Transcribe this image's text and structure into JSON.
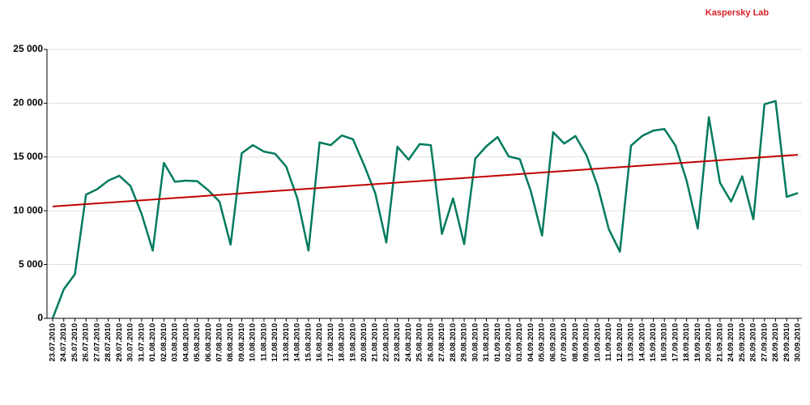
{
  "chart_data": {
    "type": "line",
    "title": "Kaspersky Lab",
    "categories": [
      "23.07.2010",
      "24.07.2010",
      "25.07.2010",
      "26.07.2010",
      "27.07.2010",
      "28.07.2010",
      "29.07.2010",
      "30.07.2010",
      "31.07.2010",
      "01.08.2010",
      "02.08.2010",
      "03.08.2010",
      "04.08.2010",
      "05.08.2010",
      "06.08.2010",
      "07.08.2010",
      "08.08.2010",
      "09.08.2010",
      "10.08.2010",
      "11.08.2010",
      "12.08.2010",
      "13.08.2010",
      "14.08.2010",
      "15.08.2010",
      "16.08.2010",
      "17.08.2010",
      "18.08.2010",
      "19.08.2010",
      "20.08.2010",
      "21.08.2010",
      "22.08.2010",
      "23.08.2010",
      "24.08.2010",
      "25.08.2010",
      "26.08.2010",
      "27.08.2010",
      "28.08.2010",
      "29.08.2010",
      "30.08.2010",
      "31.08.2010",
      "01.09.2010",
      "02.09.2010",
      "03.09.2010",
      "04.09.2010",
      "05.09.2010",
      "06.09.2010",
      "07.09.2010",
      "08.09.2010",
      "09.09.2010",
      "10.09.2010",
      "11.09.2010",
      "12.09.2010",
      "13.09.2010",
      "14.09.2010",
      "15.09.2010",
      "16.09.2010",
      "17.09.2010",
      "18.09.2010",
      "19.09.2010",
      "20.09.2010",
      "21.09.2010",
      "24.09.2010",
      "25.09.2010",
      "26.09.2010",
      "27.09.2010",
      "28.09.2010",
      "29.09.2010",
      "30.09.2010"
    ],
    "series": [
      {
        "color": "#007a5e",
        "values": [
          0,
          2700,
          4100,
          11500,
          12000,
          12800,
          13250,
          12300,
          9700,
          6300,
          14450,
          12700,
          12800,
          12750,
          11900,
          10850,
          6850,
          15350,
          16100,
          15500,
          15300,
          14100,
          11150,
          6300,
          16350,
          16100,
          17000,
          16650,
          14250,
          11650,
          7050,
          15950,
          14750,
          16200,
          16100,
          7850,
          11150,
          6900,
          14850,
          16000,
          16850,
          15050,
          14800,
          11800,
          7700,
          17300,
          16250,
          16950,
          15150,
          12300,
          8300,
          6200,
          16050,
          16950,
          17450,
          17600,
          16050,
          12800,
          8350,
          18700,
          12600,
          10850,
          13200,
          9200,
          19900,
          20200,
          11300,
          11650
        ]
      }
    ],
    "trend": {
      "color": "#c00000",
      "values": [
        10400,
        15200
      ]
    },
    "ylim": [
      0,
      25000
    ],
    "yticks": [
      0,
      {
        "value": 5000,
        "label": "5 000"
      },
      {
        "value": 10000,
        "label": "10 000"
      },
      {
        "value": 15000,
        "label": "15 000"
      },
      {
        "value": 20000,
        "label": "20 000"
      },
      {
        "value": 25000,
        "label": "25 000"
      }
    ],
    "grid": true
  }
}
